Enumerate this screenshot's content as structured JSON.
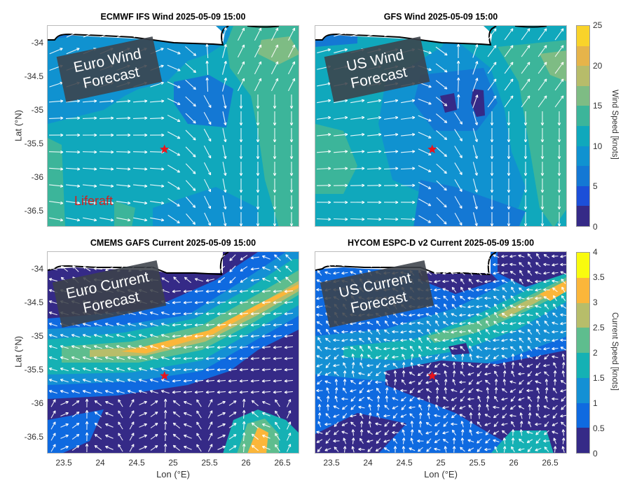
{
  "figure": {
    "panels": [
      {
        "id": "ecmwf",
        "title": "ECMWF IFS Wind 2025-05-09 15:00",
        "annotation": "Euro Wind\nForecast",
        "kind": "wind"
      },
      {
        "id": "gfs",
        "title": "GFS Wind 2025-05-09 15:00",
        "annotation": "US Wind\nForecast",
        "kind": "wind"
      },
      {
        "id": "cmems",
        "title": "CMEMS GAFS Current 2025-05-09 15:00",
        "annotation": "Euro Current\nForecast",
        "kind": "current"
      },
      {
        "id": "hycom",
        "title": "HYCOM ESPC-D v2 Current 2025-05-09 15:00",
        "annotation": "US Current\nForecast",
        "kind": "current"
      }
    ],
    "liferaft_label": "Liferaft",
    "ylabel": "Lat (°N)",
    "xlabel": "Lon (°E)",
    "yticks": [
      "-34",
      "-34.5",
      "-35",
      "-35.5",
      "-36",
      "-36.5"
    ],
    "xticks": [
      "23.5",
      "24",
      "24.5",
      "25",
      "25.5",
      "26",
      "26.5"
    ],
    "wind_colorbar": {
      "label": "Wind Speed [knots]",
      "ticks": [
        "0",
        "5",
        "10",
        "15",
        "20",
        "25"
      ],
      "colors": [
        "#352a87",
        "#1c4fd8",
        "#1478d4",
        "#1092d0",
        "#10a8bc",
        "#3cb59a",
        "#7ebc84",
        "#b7bc6a",
        "#e6b44a",
        "#f9d32a",
        "#f9fb0e"
      ]
    },
    "current_colorbar": {
      "label": "Current Speed [knots]",
      "ticks": [
        "0",
        "0.5",
        "1",
        "1.5",
        "2",
        "2.5",
        "3",
        "3.5",
        "4"
      ],
      "colors": [
        "#352a87",
        "#0f6ae0",
        "#1490d4",
        "#15b1b4",
        "#5ebd8e",
        "#b7bd6a",
        "#fbb63a",
        "#f9fb0e"
      ]
    }
  },
  "chart_data": [
    {
      "type": "heatmap",
      "title": "ECMWF IFS Wind 2025-05-09 15:00",
      "xlabel": "Lon (°E)",
      "ylabel": "Lat (°N)",
      "xlim": [
        23.25,
        26.75
      ],
      "ylim": [
        -36.75,
        -33.75
      ],
      "colorbar": {
        "label": "Wind Speed [knots]",
        "range": [
          0,
          25
        ]
      },
      "marker": {
        "name": "Liferaft",
        "lon": 24.88,
        "lat": -35.6
      },
      "annotation": "Euro Wind Forecast",
      "notes": "Mostly 7.5-15 kn; weaker (~5 kn) patch near 25.2E,-34.6; ~15-17 kn east near 26.3E,-34.1; winds veer from westerly/ESE in west to southward in east"
    },
    {
      "type": "heatmap",
      "title": "GFS Wind 2025-05-09 15:00",
      "xlabel": "Lon (°E)",
      "ylabel": "Lat (°N)",
      "xlim": [
        23.25,
        26.75
      ],
      "ylim": [
        -36.75,
        -33.75
      ],
      "colorbar": {
        "label": "Wind Speed [knots]",
        "range": [
          0,
          25
        ]
      },
      "marker": {
        "name": "Liferaft",
        "lon": 24.88,
        "lat": -35.6
      },
      "annotation": "US Wind Forecast",
      "notes": "Central low-wind tongue 2.5-7.5 kn with <2.5 kn cells near 25.1E,-34.65; 12.5-15 kn at west and east edges"
    },
    {
      "type": "heatmap",
      "title": "CMEMS GAFS Current 2025-05-09 15:00",
      "xlabel": "Lon (°E)",
      "ylabel": "Lat (°N)",
      "xlim": [
        23.25,
        26.75
      ],
      "ylim": [
        -36.75,
        -33.75
      ],
      "colorbar": {
        "label": "Current Speed [knots]",
        "range": [
          0,
          4
        ]
      },
      "marker": {
        "name": "Liferaft",
        "lon": 24.88,
        "lat": -35.6
      },
      "annotation": "Euro Current Forecast",
      "notes": "Agulhas jet SW-NE band 3-3.5 kn from 24.2E,-35.3 to 26.7E,-34.4; weak <0.5 kn areas north and south; eddy ~3 kn near 26.1E,-36.6"
    },
    {
      "type": "heatmap",
      "title": "HYCOM ESPC-D v2 Current 2025-05-09 15:00",
      "xlabel": "Lon (°E)",
      "ylabel": "Lat (°N)",
      "xlim": [
        23.25,
        26.75
      ],
      "ylim": [
        -36.75,
        -33.75
      ],
      "colorbar": {
        "label": "Current Speed [knots]",
        "range": [
          0,
          4
        ]
      },
      "marker": {
        "name": "Liferaft",
        "lon": 24.88,
        "lat": -35.6
      },
      "annotation": "US Current Forecast",
      "notes": "Jet 2.5-3.5 kn from 24.3E,-35.1 to 26.7E,-34.2; broad <0.5 kn region south-east of liferaft"
    }
  ]
}
